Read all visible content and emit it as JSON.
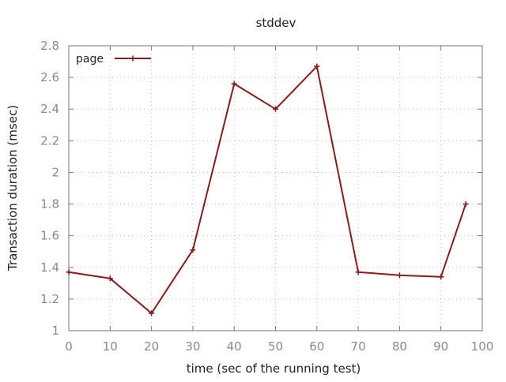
{
  "chart_data": {
    "type": "line",
    "title": "stddev",
    "xlabel": "time (sec of the running test)",
    "ylabel": "Transaction duration (msec)",
    "xlim": [
      0,
      100
    ],
    "ylim": [
      1,
      2.8
    ],
    "x_ticks": [
      "0",
      "10",
      "20",
      "30",
      "40",
      "50",
      "60",
      "70",
      "80",
      "90",
      "100"
    ],
    "y_ticks": [
      "1",
      "1.2",
      "1.4",
      "1.6",
      "1.8",
      "2",
      "2.2",
      "2.4",
      "2.6",
      "2.8"
    ],
    "grid": true,
    "legend_position": "top-left",
    "series": [
      {
        "name": "page",
        "color": "#8b1a1a",
        "marker": "plus",
        "x": [
          0,
          10,
          20,
          30,
          40,
          50,
          60,
          70,
          80,
          90,
          96
        ],
        "y": [
          1.37,
          1.33,
          1.11,
          1.51,
          2.56,
          2.4,
          2.67,
          1.37,
          1.35,
          1.34,
          1.8
        ]
      }
    ]
  }
}
